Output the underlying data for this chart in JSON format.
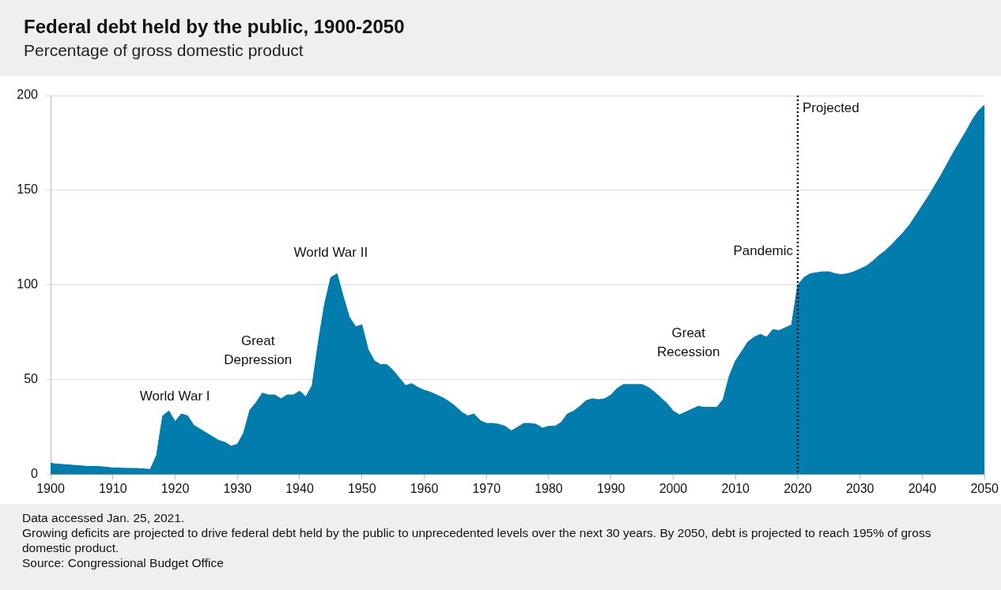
{
  "chart_data": {
    "type": "area",
    "title": "Federal debt held by the public, 1900-2050",
    "subtitle": "Percentage of gross domestic product",
    "x": [
      1900,
      1901,
      1902,
      1904,
      1906,
      1908,
      1910,
      1912,
      1914,
      1916,
      1917,
      1918,
      1919,
      1920,
      1921,
      1922,
      1923,
      1924,
      1925,
      1926,
      1927,
      1928,
      1929,
      1930,
      1931,
      1932,
      1933,
      1934,
      1935,
      1936,
      1937,
      1938,
      1939,
      1940,
      1941,
      1942,
      1943,
      1944,
      1945,
      1946,
      1947,
      1948,
      1949,
      1950,
      1951,
      1952,
      1953,
      1954,
      1955,
      1956,
      1957,
      1958,
      1959,
      1960,
      1961,
      1962,
      1963,
      1964,
      1965,
      1966,
      1967,
      1968,
      1969,
      1970,
      1971,
      1972,
      1973,
      1974,
      1975,
      1976,
      1977,
      1978,
      1979,
      1980,
      1981,
      1982,
      1983,
      1984,
      1985,
      1986,
      1987,
      1988,
      1989,
      1990,
      1991,
      1992,
      1993,
      1994,
      1995,
      1996,
      1997,
      1998,
      1999,
      2000,
      2001,
      2002,
      2003,
      2004,
      2005,
      2006,
      2007,
      2008,
      2009,
      2010,
      2011,
      2012,
      2013,
      2014,
      2015,
      2016,
      2017,
      2018,
      2019,
      2020,
      2021,
      2022,
      2023,
      2024,
      2025,
      2026,
      2027,
      2028,
      2029,
      2030,
      2031,
      2032,
      2033,
      2034,
      2035,
      2036,
      2037,
      2038,
      2039,
      2040,
      2041,
      2042,
      2043,
      2044,
      2045,
      2046,
      2047,
      2048,
      2049,
      2050
    ],
    "values": [
      6,
      5.5,
      5.3,
      4.8,
      4.3,
      4.2,
      3.5,
      3.3,
      3.2,
      2.7,
      10,
      31,
      33.5,
      28,
      32,
      31,
      26,
      24,
      22,
      20,
      18,
      17,
      15,
      16,
      22,
      34,
      38,
      43,
      42,
      42,
      40,
      42,
      42,
      44,
      41,
      47,
      70,
      90,
      104,
      106,
      94,
      83,
      78,
      79,
      66,
      60,
      58,
      58,
      55,
      51,
      47,
      48,
      46,
      44.5,
      43.5,
      42,
      40.5,
      38.5,
      36,
      33,
      31,
      32,
      28.5,
      27,
      27,
      26.5,
      25.5,
      23,
      25,
      27,
      27,
      26.5,
      24.5,
      25.5,
      25.5,
      27.5,
      32,
      33.5,
      36,
      39,
      40,
      39.5,
      40,
      42,
      45.5,
      47.5,
      47.5,
      47.5,
      47.5,
      46,
      43.5,
      40.5,
      37.5,
      33.5,
      31.5,
      33,
      34.5,
      36,
      35.5,
      35.5,
      35.5,
      39.5,
      52,
      60,
      65,
      70,
      72.5,
      74,
      72.5,
      76.5,
      76,
      77.5,
      79,
      100,
      104,
      106,
      106.5,
      107,
      107,
      106,
      105.5,
      106,
      107,
      108.5,
      110,
      112.5,
      115.5,
      118,
      121,
      124.5,
      128,
      132,
      137,
      142,
      147,
      152.5,
      158,
      164,
      170,
      175.5,
      181,
      187,
      192,
      195
    ],
    "color": "#007cad",
    "xlim": [
      1900,
      2050
    ],
    "xticks": [
      1900,
      1910,
      1920,
      1930,
      1940,
      1950,
      1960,
      1970,
      1980,
      1990,
      2000,
      2010,
      2020,
      2030,
      2040,
      2050
    ],
    "ylim": [
      0,
      200
    ],
    "yticks": [
      0,
      50,
      100,
      150,
      200
    ],
    "grid": "y",
    "ref_lines": [
      {
        "axis": "x",
        "value": 2020,
        "label": "Projected",
        "line_style": "dotted",
        "color": "#000000"
      }
    ],
    "annotations": [
      "World War I",
      "Great\nDepression",
      "World War II",
      "Great\nRecession",
      "Pandemic",
      "Data accessed Jan. 25, 2021.",
      "Growing deficits are projected to drive federal debt held by the public to unprecedented levels over the next 30 years. By 2050, debt is projected to reach 195% of gross domestic product.",
      "Source: Congressional Budget Office"
    ]
  }
}
